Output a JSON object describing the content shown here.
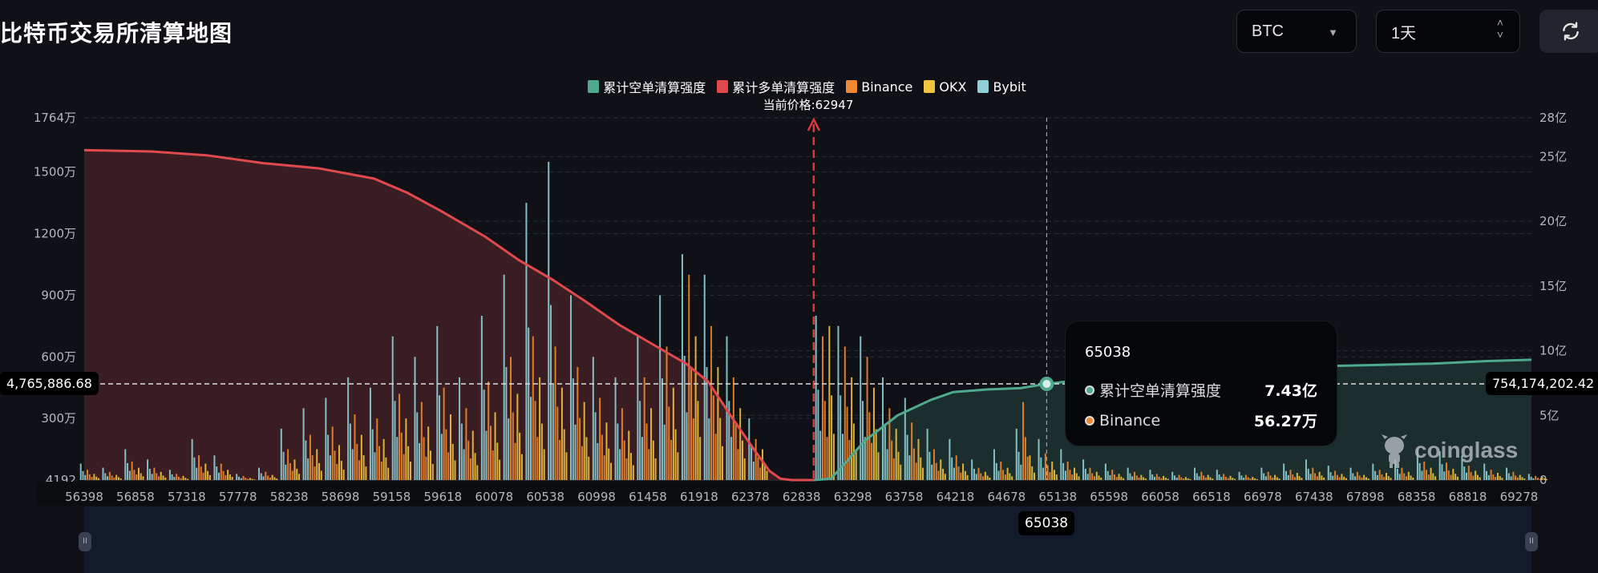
{
  "header": {
    "title": "比特币交易所清算地图",
    "coin_select": {
      "value": "BTC",
      "icon": "caret-down-icon"
    },
    "period_select": {
      "value": "1天",
      "icon": "up-down-chevron-icon"
    },
    "refresh_icon": "refresh-icon"
  },
  "legend": [
    {
      "label": "累计空单清算强度",
      "color": "#4fa98f"
    },
    {
      "label": "累计多单清算强度",
      "color": "#e04a4f"
    },
    {
      "label": "Binance",
      "color": "#f0882e"
    },
    {
      "label": "OKX",
      "color": "#f2c33c"
    },
    {
      "label": "Bybit",
      "color": "#8fd0d6"
    }
  ],
  "current_price_label": "当前价格:62947",
  "crosshair": {
    "left_value": "4,765,886.68",
    "right_value": "754,174,202.42",
    "x_label": "65038"
  },
  "tooltip": {
    "title": "65038",
    "rows": [
      {
        "label": "累计空单清算强度",
        "value": "7.43亿",
        "color": "#4fa98f"
      },
      {
        "label": "Binance",
        "value": "56.27万",
        "color": "#f0882e"
      }
    ]
  },
  "watermark": "coinglass",
  "chart_data": {
    "type": "bar+area",
    "current_price": 62947,
    "hover_price": 65038,
    "x_range": [
      56398,
      69390
    ],
    "x_ticks": [
      "56398",
      "56858",
      "57318",
      "57778",
      "58238",
      "58698",
      "59158",
      "59618",
      "60078",
      "60538",
      "60998",
      "61458",
      "61918",
      "62378",
      "62838",
      "63298",
      "63758",
      "64218",
      "64678",
      "65138",
      "65598",
      "66058",
      "66518",
      "66978",
      "67438",
      "67898",
      "68358",
      "68818",
      "69278"
    ],
    "left_axis": {
      "unit": "万",
      "range": [
        0,
        1764
      ],
      "ticks": [
        "1764万",
        "1500万",
        "1200万",
        "900万",
        "600万",
        "300万",
        "4192"
      ]
    },
    "right_axis": {
      "unit": "亿",
      "range": [
        0,
        28
      ],
      "ticks": [
        "28亿",
        "25亿",
        "20亿",
        "15亿",
        "10亿",
        "5亿",
        "0"
      ]
    },
    "grid": true,
    "legend_position": "top",
    "bar_bins_start": 56400,
    "bar_bin_step": 200,
    "bars": [
      {
        "name": "Bybit",
        "color": "#8fd0d6",
        "values": [
          80,
          60,
          150,
          100,
          50,
          200,
          120,
          30,
          60,
          250,
          350,
          400,
          500,
          450,
          700,
          600,
          750,
          500,
          800,
          1000,
          1350,
          1550,
          900,
          600,
          500,
          700,
          900,
          1100,
          1000,
          700,
          300,
          0,
          0,
          800,
          750,
          700,
          500,
          400,
          250,
          200,
          100,
          150,
          250,
          200,
          150,
          100,
          80,
          60,
          50,
          40,
          60,
          50,
          40,
          60,
          80,
          100,
          70,
          60,
          80,
          100,
          150,
          140,
          120,
          80,
          60,
          30
        ]
      },
      {
        "name": "Binance",
        "color": "#f0882e",
        "values": [
          50,
          40,
          90,
          60,
          30,
          120,
          80,
          20,
          40,
          150,
          220,
          260,
          320,
          300,
          420,
          380,
          450,
          350,
          480,
          600,
          700,
          650,
          550,
          400,
          350,
          500,
          650,
          1000,
          750,
          500,
          200,
          0,
          0,
          700,
          650,
          600,
          350,
          280,
          150,
          120,
          60,
          90,
          380,
          130,
          90,
          60,
          50,
          40,
          30,
          25,
          40,
          30,
          25,
          40,
          50,
          60,
          45,
          40,
          50,
          60,
          90,
          85,
          70,
          50,
          40,
          20
        ]
      },
      {
        "name": "OKX",
        "color": "#f2c33c",
        "values": [
          30,
          25,
          60,
          40,
          20,
          80,
          50,
          10,
          25,
          100,
          150,
          170,
          220,
          200,
          300,
          260,
          320,
          240,
          330,
          420,
          500,
          450,
          380,
          280,
          240,
          350,
          450,
          700,
          550,
          350,
          150,
          0,
          0,
          750,
          500,
          450,
          250,
          200,
          100,
          80,
          40,
          60,
          120,
          90,
          60,
          40,
          30,
          25,
          20,
          15,
          25,
          20,
          15,
          25,
          35,
          40,
          30,
          25,
          35,
          40,
          60,
          55,
          45,
          35,
          25,
          15
        ]
      }
    ],
    "cumulative_series": [
      {
        "name": "累计多单清算强度",
        "color": "#e04a4f",
        "axis": "right",
        "points": [
          [
            56398,
            25.5
          ],
          [
            57000,
            25.4
          ],
          [
            57500,
            25.1
          ],
          [
            58000,
            24.5
          ],
          [
            58500,
            24.1
          ],
          [
            59000,
            23.3
          ],
          [
            59300,
            22.2
          ],
          [
            59600,
            20.8
          ],
          [
            60000,
            18.8
          ],
          [
            60300,
            17.0
          ],
          [
            60600,
            15.5
          ],
          [
            60900,
            13.8
          ],
          [
            61200,
            12.0
          ],
          [
            61500,
            10.5
          ],
          [
            61800,
            9.0
          ],
          [
            62000,
            7.6
          ],
          [
            62200,
            5.0
          ],
          [
            62400,
            2.5
          ],
          [
            62550,
            0.7
          ],
          [
            62650,
            0.1
          ],
          [
            62750,
            0
          ],
          [
            62947,
            0
          ]
        ]
      },
      {
        "name": "累计空单清算强度",
        "color": "#4fa98f",
        "axis": "right",
        "points": [
          [
            62947,
            0
          ],
          [
            63100,
            0.1
          ],
          [
            63250,
            1.5
          ],
          [
            63400,
            3.0
          ],
          [
            63550,
            4.0
          ],
          [
            63700,
            5.0
          ],
          [
            63850,
            5.6
          ],
          [
            64000,
            6.2
          ],
          [
            64200,
            6.8
          ],
          [
            64500,
            7.0
          ],
          [
            64800,
            7.1
          ],
          [
            65038,
            7.43
          ],
          [
            65300,
            7.7
          ],
          [
            65600,
            8.1
          ],
          [
            66000,
            8.4
          ],
          [
            66500,
            8.6
          ],
          [
            67000,
            8.7
          ],
          [
            67500,
            8.8
          ],
          [
            68000,
            8.9
          ],
          [
            68500,
            9.0
          ],
          [
            69000,
            9.2
          ],
          [
            69390,
            9.3
          ]
        ]
      }
    ]
  }
}
